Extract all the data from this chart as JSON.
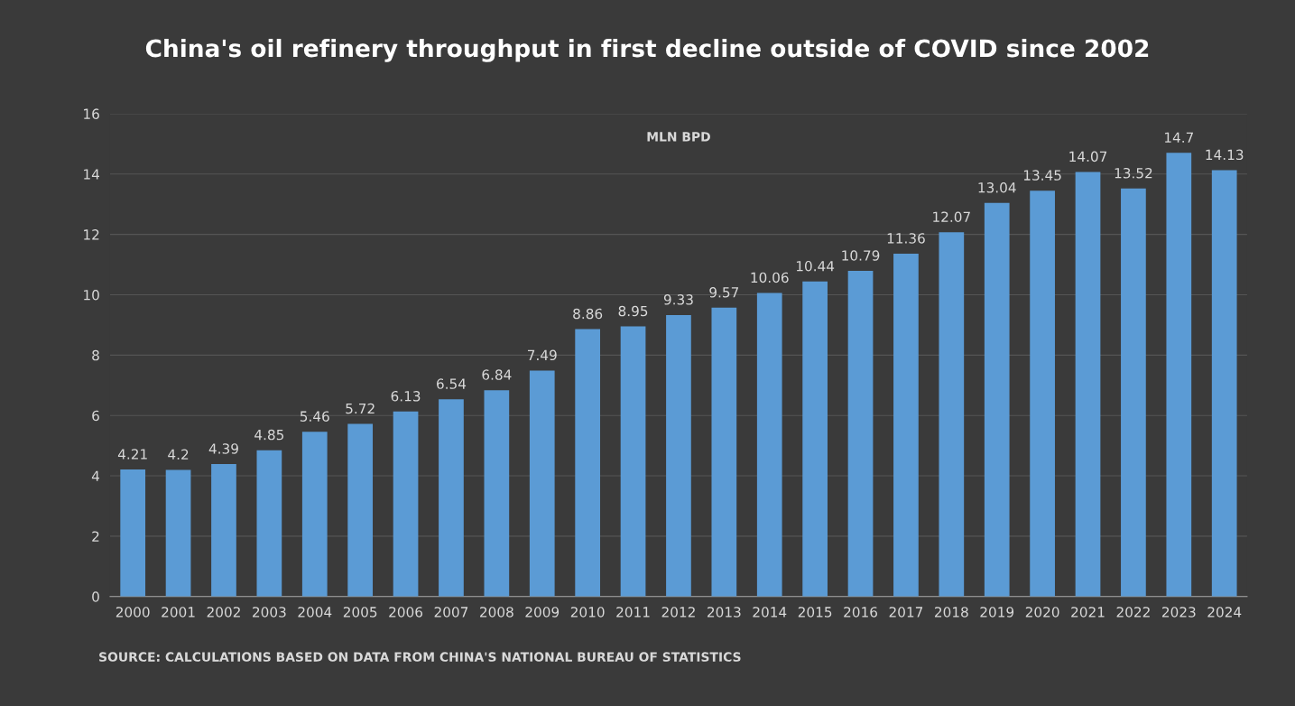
{
  "chart_data": {
    "type": "bar",
    "title": "China's oil refinery throughput in first decline outside of COVID since 2002",
    "categories": [
      "2000",
      "2001",
      "2002",
      "2003",
      "2004",
      "2005",
      "2006",
      "2007",
      "2008",
      "2009",
      "2010",
      "2011",
      "2012",
      "2013",
      "2014",
      "2015",
      "2016",
      "2017",
      "2018",
      "2019",
      "2020",
      "2021",
      "2022",
      "2023",
      "2024"
    ],
    "values": [
      4.21,
      4.2,
      4.39,
      4.85,
      5.46,
      5.72,
      6.13,
      6.54,
      6.84,
      7.49,
      8.86,
      8.95,
      9.33,
      9.57,
      10.06,
      10.44,
      10.79,
      11.36,
      12.07,
      13.04,
      13.45,
      14.07,
      13.52,
      14.7,
      14.13
    ],
    "color": "#5b9bd5",
    "ylim": [
      0,
      16
    ],
    "yticks": [
      0,
      2,
      4,
      6,
      8,
      10,
      12,
      14,
      16
    ],
    "grid": "y",
    "data_labels": true,
    "annotations": [
      "MLN BPD",
      "SOURCE: CALCULATIONS BASED ON DATA FROM CHINA'S NATIONAL BUREAU OF STATISTICS"
    ]
  }
}
